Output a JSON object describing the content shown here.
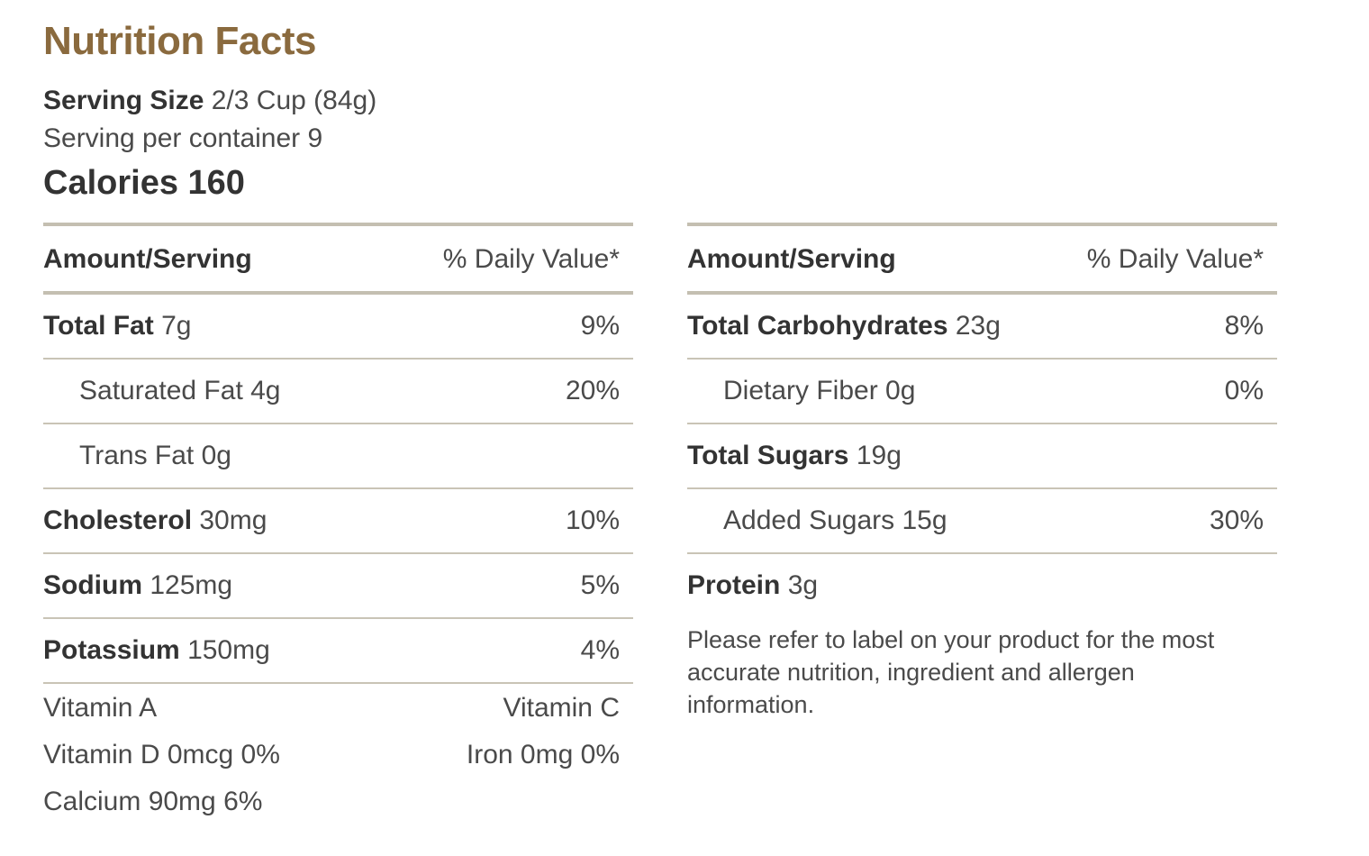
{
  "title": "Nutrition Facts",
  "serving": {
    "size_label": "Serving Size",
    "size_value": "2/3 Cup (84g)",
    "per_container": "Serving per container 9"
  },
  "calories": "Calories 160",
  "left_table": {
    "header_left": "Amount/Serving",
    "header_right": "% Daily Value*",
    "rows": [
      {
        "name": "Total Fat",
        "amount": "7g",
        "dv": "9%"
      },
      {
        "name": "Saturated Fat 4g",
        "amount": "",
        "dv": "20%"
      },
      {
        "name": "Trans Fat 0g",
        "amount": "",
        "dv": ""
      },
      {
        "name": "Cholesterol",
        "amount": "30mg",
        "dv": "10%"
      },
      {
        "name": "Sodium",
        "amount": "125mg",
        "dv": "5%"
      },
      {
        "name": "Potassium",
        "amount": "150mg",
        "dv": "4%"
      }
    ]
  },
  "vitamins": {
    "row1_left": "Vitamin A",
    "row1_right": "Vitamin C",
    "row2_left": "Vitamin D 0mcg 0%",
    "row2_right": "Iron 0mg 0%",
    "row3_left": "Calcium 90mg 6%"
  },
  "right_table": {
    "header_left": "Amount/Serving",
    "header_right": "% Daily Value*",
    "rows": [
      {
        "name": "Total Carbohydrates",
        "amount": "23g",
        "dv": "8%"
      },
      {
        "name": "Dietary Fiber 0g",
        "amount": "",
        "dv": "0%"
      },
      {
        "name": "Total Sugars",
        "amount": "19g",
        "dv": ""
      },
      {
        "name": "Added Sugars 15g",
        "amount": "",
        "dv": "30%"
      },
      {
        "name": "Protein",
        "amount": "3g",
        "dv": ""
      }
    ]
  },
  "disclaimer": "Please refer to label on your product for the most accurate nutrition, ingredient and allergen information.",
  "colors": {
    "title": "#8a6a3e",
    "rule": "#c4bfb1",
    "text": "#4a4a4a"
  }
}
